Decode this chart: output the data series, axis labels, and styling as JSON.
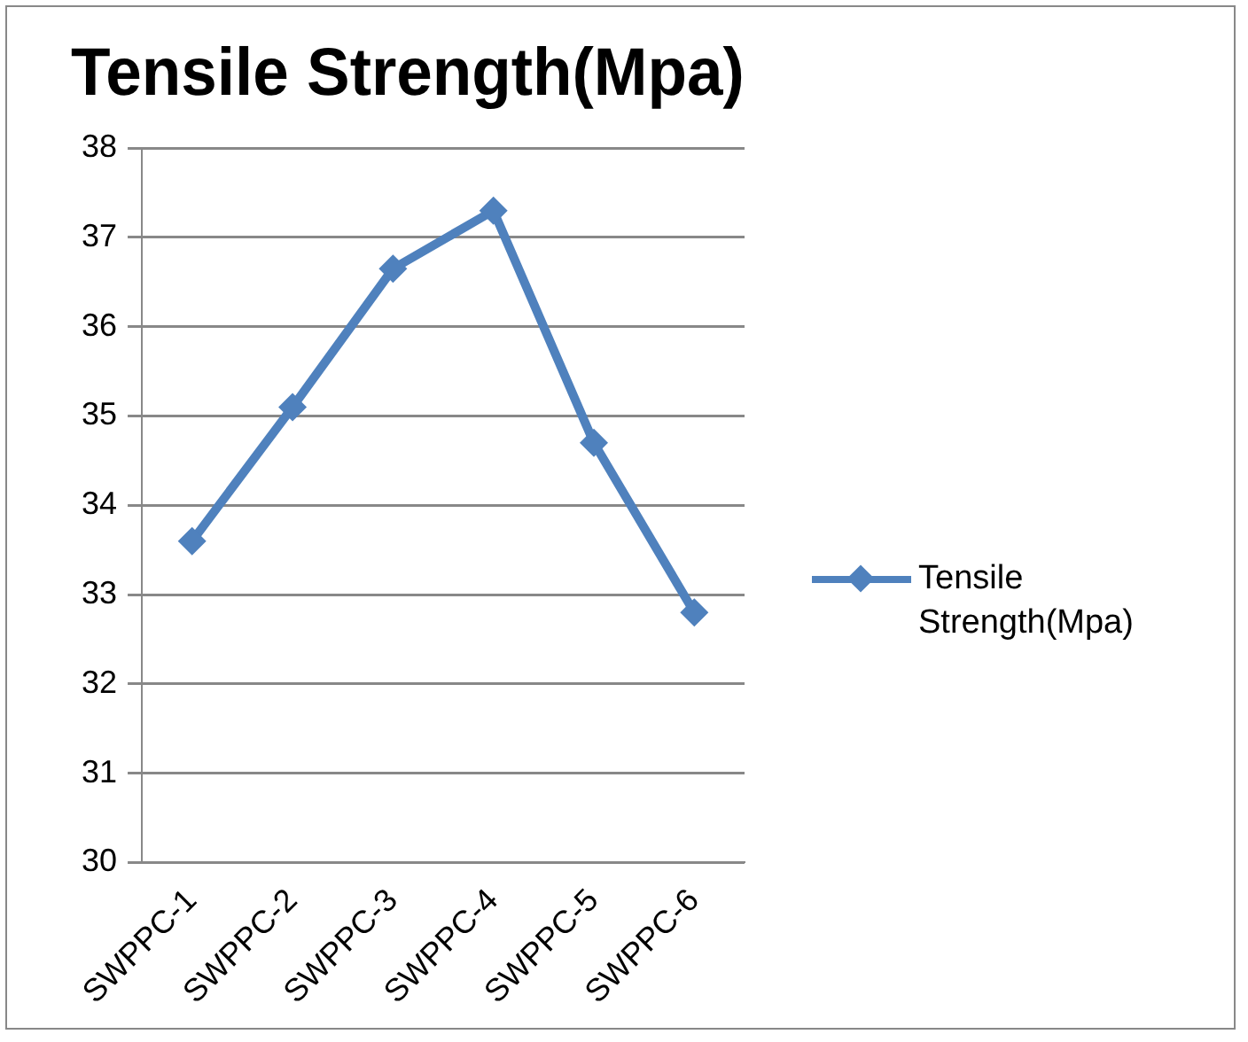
{
  "chart_data": {
    "type": "line",
    "title": "Tensile Strength(Mpa)",
    "categories": [
      "SWPPC-1",
      "SWPPC-2",
      "SWPPC-3",
      "SWPPC-4",
      "SWPPC-5",
      "SWPPC-6"
    ],
    "series": [
      {
        "name": "Tensile Strength(Mpa)",
        "color": "#4f81bd",
        "values": [
          33.6,
          35.1,
          36.65,
          37.3,
          34.7,
          32.8
        ]
      }
    ],
    "ylim": [
      30,
      38
    ],
    "yticks": [
      30,
      31,
      32,
      33,
      34,
      35,
      36,
      37,
      38
    ],
    "grid": "y",
    "legend": "right",
    "marker": "diamond"
  }
}
